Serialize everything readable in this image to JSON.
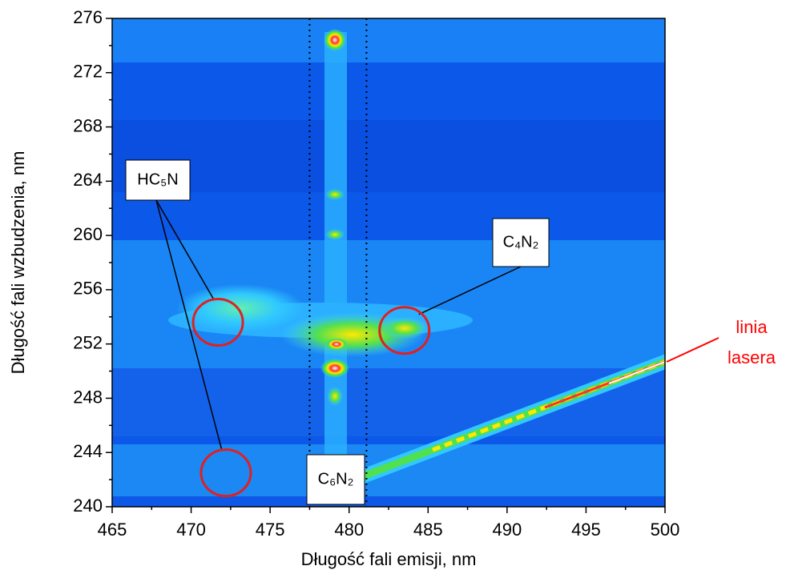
{
  "chart_data": {
    "type": "contour",
    "x_label": "Długość fali emisji,  nm",
    "y_label": "Długość fali wzbudzenia, nm",
    "xlim": [
      465,
      500
    ],
    "ylim": [
      240,
      276
    ],
    "xticks": [
      465,
      470,
      475,
      480,
      485,
      490,
      495,
      500
    ],
    "yticks": [
      240,
      244,
      248,
      252,
      256,
      260,
      264,
      268,
      272,
      276
    ],
    "guide_lines_x": [
      477.5,
      481.1
    ],
    "annotations": [
      {
        "label": "HC₅N",
        "points": [
          [
            471.7,
            253.6
          ],
          [
            472.2,
            242.5
          ]
        ],
        "color": "#e02020"
      },
      {
        "label": "C₄N₂",
        "points": [
          [
            483.5,
            253.0
          ]
        ],
        "color": "#e02020"
      },
      {
        "label": "C₆N₂",
        "points": []
      },
      {
        "lines": [
          "linia",
          "lasera"
        ],
        "color": "#ff0000"
      }
    ]
  }
}
